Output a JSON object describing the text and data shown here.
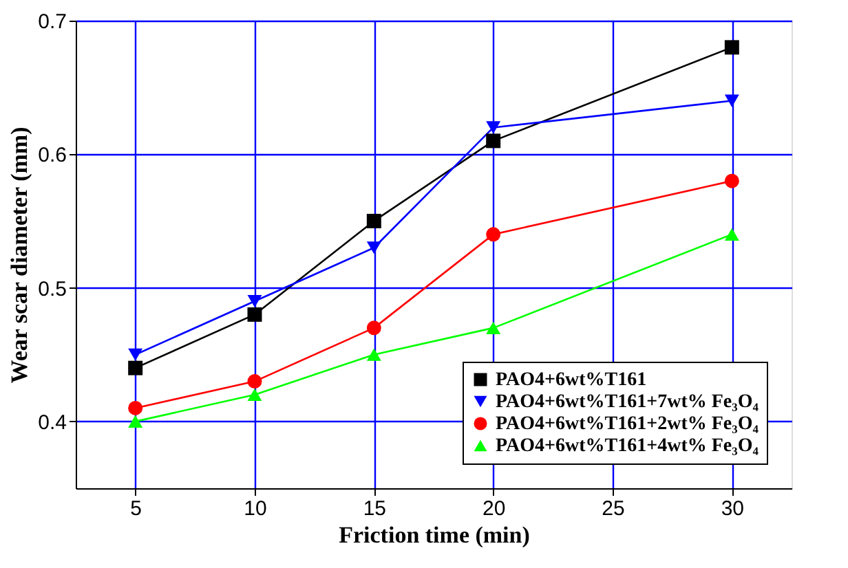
{
  "chart_data": {
    "type": "line",
    "xlabel": "Friction time (min)",
    "ylabel": "Wear scar diameter (mm)",
    "x": [
      5,
      10,
      15,
      20,
      30
    ],
    "series": [
      {
        "name": "PAO4+6wt%T161",
        "color": "#000000",
        "marker": "square",
        "values": [
          0.44,
          0.48,
          0.55,
          0.61,
          0.68
        ]
      },
      {
        "name": "PAO4+6wt%T161+7wt% Fe₃O₄",
        "color": "#0000ff",
        "marker": "triangle-down",
        "values": [
          0.45,
          0.49,
          0.53,
          0.62,
          0.64
        ]
      },
      {
        "name": "PAO4+6wt%T161+2wt% Fe₃O₄",
        "color": "#ff0000",
        "marker": "circle",
        "values": [
          0.41,
          0.43,
          0.47,
          0.54,
          0.58
        ]
      },
      {
        "name": "PAO4+6wt%T161+4wt% Fe₃O₄",
        "color": "#00ff00",
        "marker": "triangle",
        "values": [
          0.4,
          0.42,
          0.45,
          0.47,
          0.54
        ]
      }
    ],
    "xlim": [
      2.5,
      32.5
    ],
    "xticks": [
      5,
      10,
      15,
      20,
      25,
      30
    ],
    "ylim": [
      0.35,
      0.7
    ],
    "yticks": [
      0.4,
      0.5,
      0.6,
      0.7
    ],
    "grid": true,
    "legend": "bottom right",
    "line_style": "solid"
  }
}
